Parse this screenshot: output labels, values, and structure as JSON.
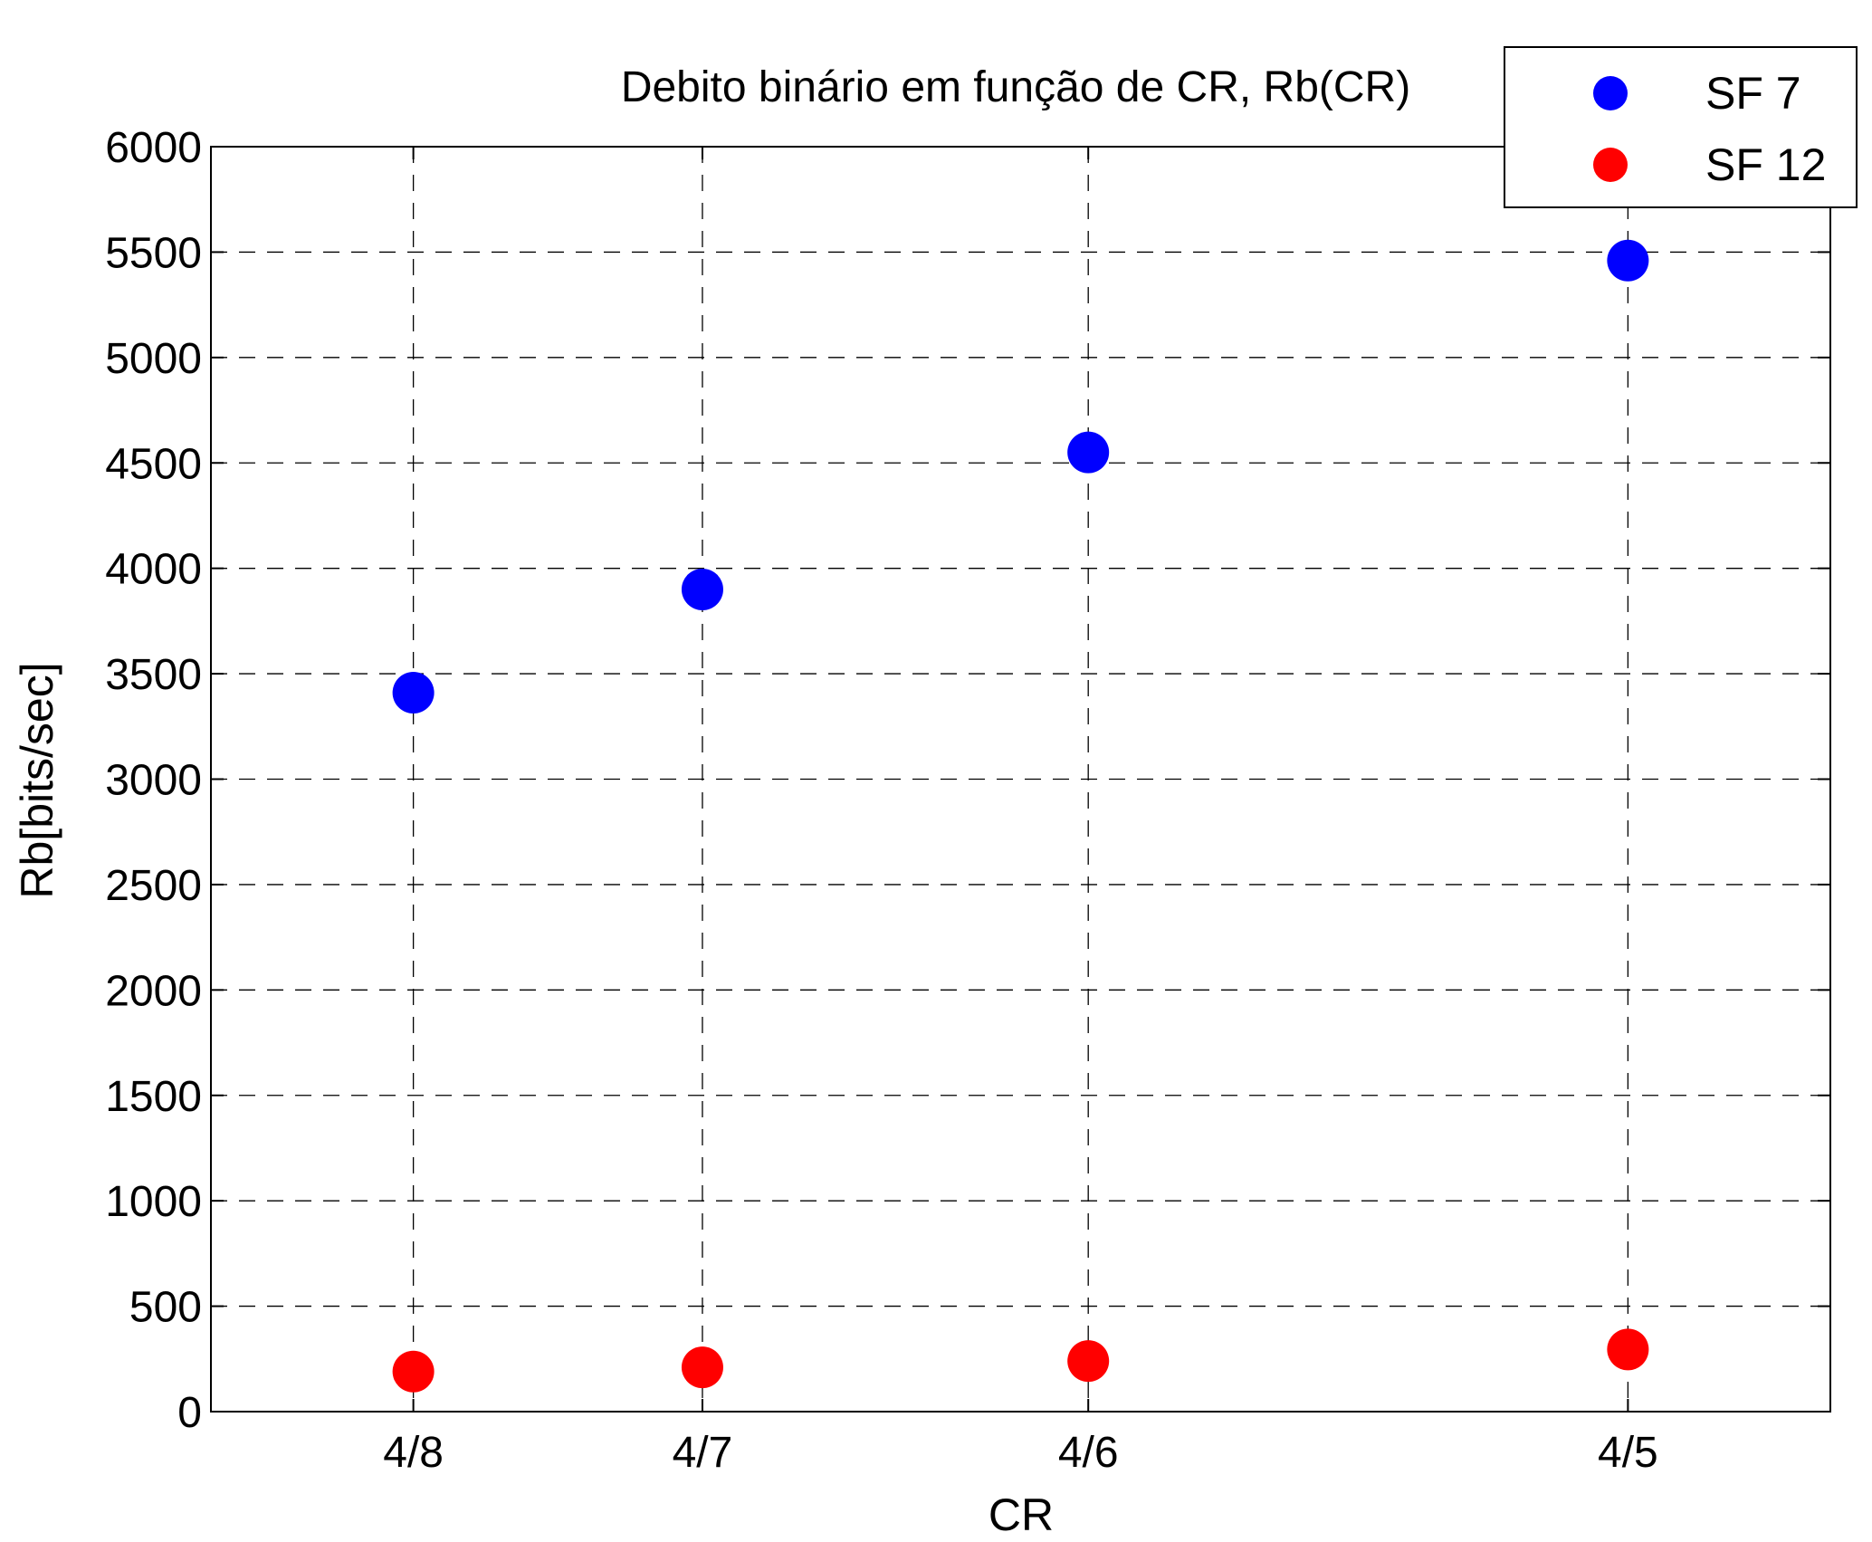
{
  "chart_data": {
    "type": "scatter",
    "title": "Debito binário em função de CR, Rb(CR)",
    "xlabel": "CR",
    "ylabel": "Rb[bits/sec]",
    "x": [
      0.5,
      0.5714,
      0.6667,
      0.8
    ],
    "x_tick_values": [
      0.5,
      0.5714,
      0.6667,
      0.8
    ],
    "x_tick_labels": [
      "4/8",
      "4/7",
      "4/6",
      "4/5"
    ],
    "xlim": [
      0.45,
      0.85
    ],
    "ylim": [
      0,
      6000
    ],
    "y_ticks": [
      0,
      500,
      1000,
      1500,
      2000,
      2500,
      3000,
      3500,
      4000,
      4500,
      5000,
      5500,
      6000
    ],
    "grid": true,
    "legend_position": "top-right",
    "series": [
      {
        "name": "SF 7",
        "color": "#0000ff",
        "values": [
          3410,
          3900,
          4550,
          5460
        ]
      },
      {
        "name": "SF 12",
        "color": "#ff0000",
        "values": [
          190,
          210,
          240,
          295
        ]
      }
    ]
  }
}
